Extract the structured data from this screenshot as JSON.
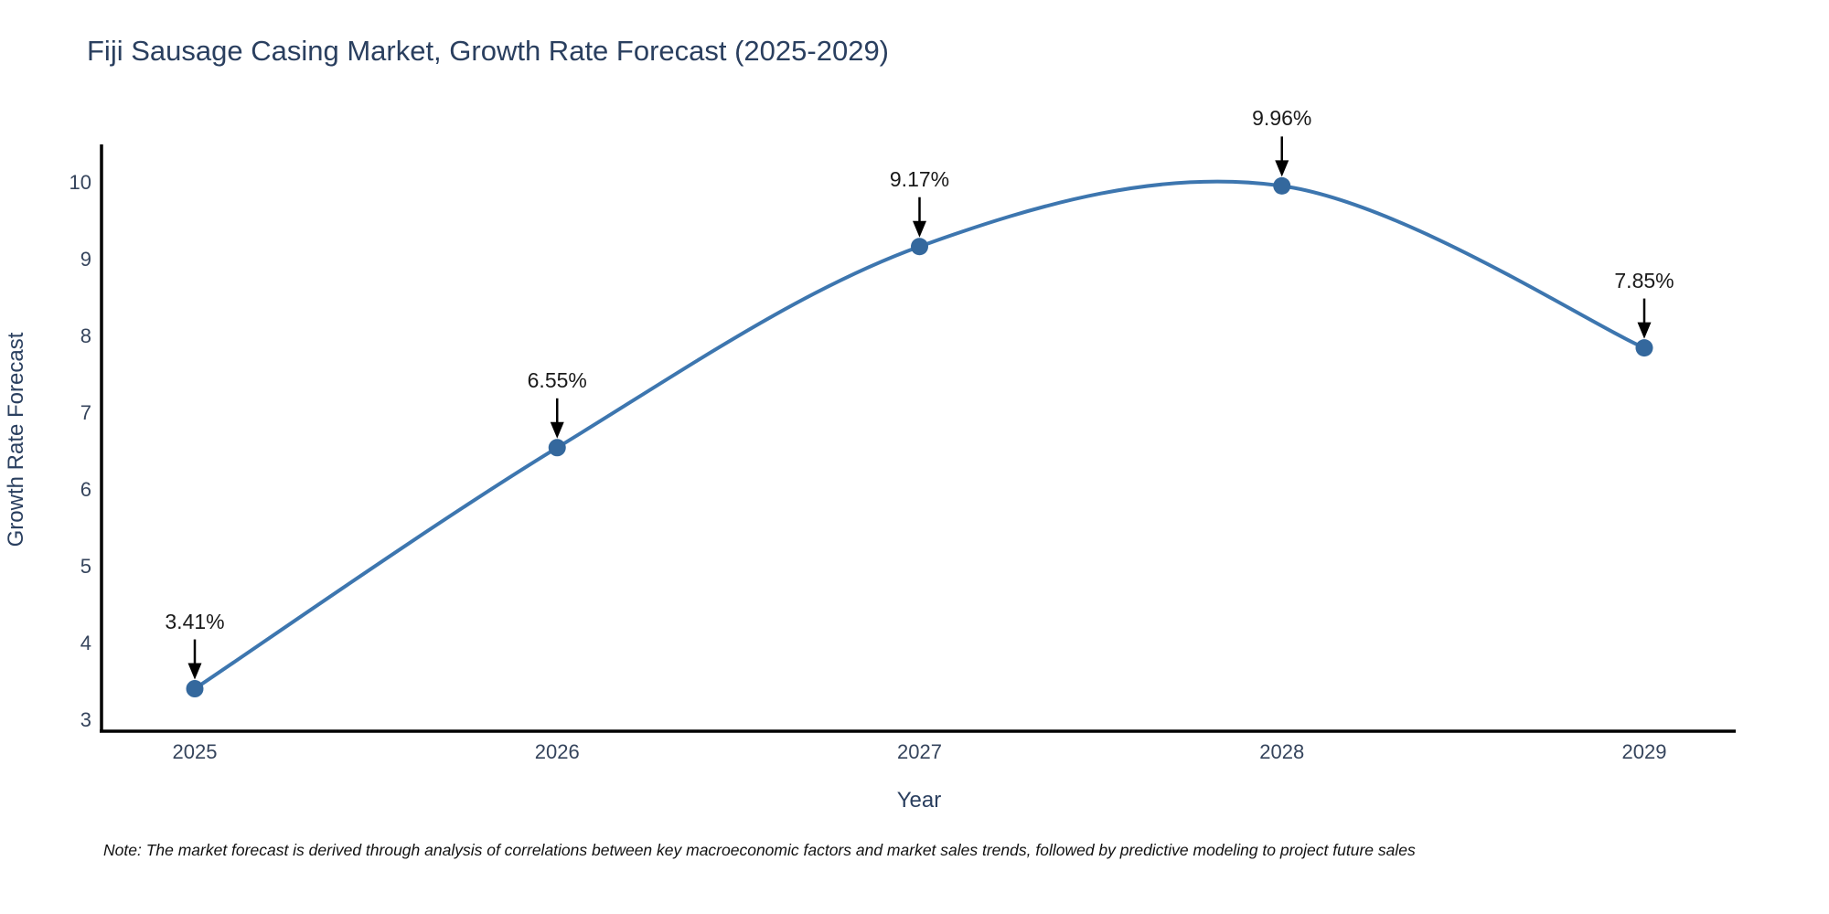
{
  "page": {
    "note": "Note: The market forecast is derived through analysis of correlations between key macroeconomic factors and market sales trends, followed by predictive modeling to project future sales"
  },
  "chart_data": {
    "type": "line",
    "title": "Fiji Sausage Casing Market, Growth Rate Forecast (2025-2029)",
    "xlabel": "Year",
    "ylabel": "Growth Rate Forecast",
    "categories": [
      2025,
      2026,
      2027,
      2028,
      2029
    ],
    "values": [
      3.41,
      6.55,
      9.17,
      9.96,
      7.85
    ],
    "data_labels": [
      "3.41%",
      "6.55%",
      "9.17%",
      "9.96%",
      "7.85%"
    ],
    "yticks": [
      3,
      4,
      5,
      6,
      7,
      8,
      9,
      10
    ],
    "ylim": [
      3,
      10
    ],
    "line_shape": "spline",
    "grid": false,
    "legend_position": "none",
    "annotations_style": "black down-arrow pointing to each marker",
    "colors": {
      "line": "#3d76af",
      "marker": "#34689d",
      "axis": "#000000",
      "title_text": "#2a3f5f",
      "tick_text": "#35445c",
      "label_text": "#1a1a1a"
    }
  }
}
